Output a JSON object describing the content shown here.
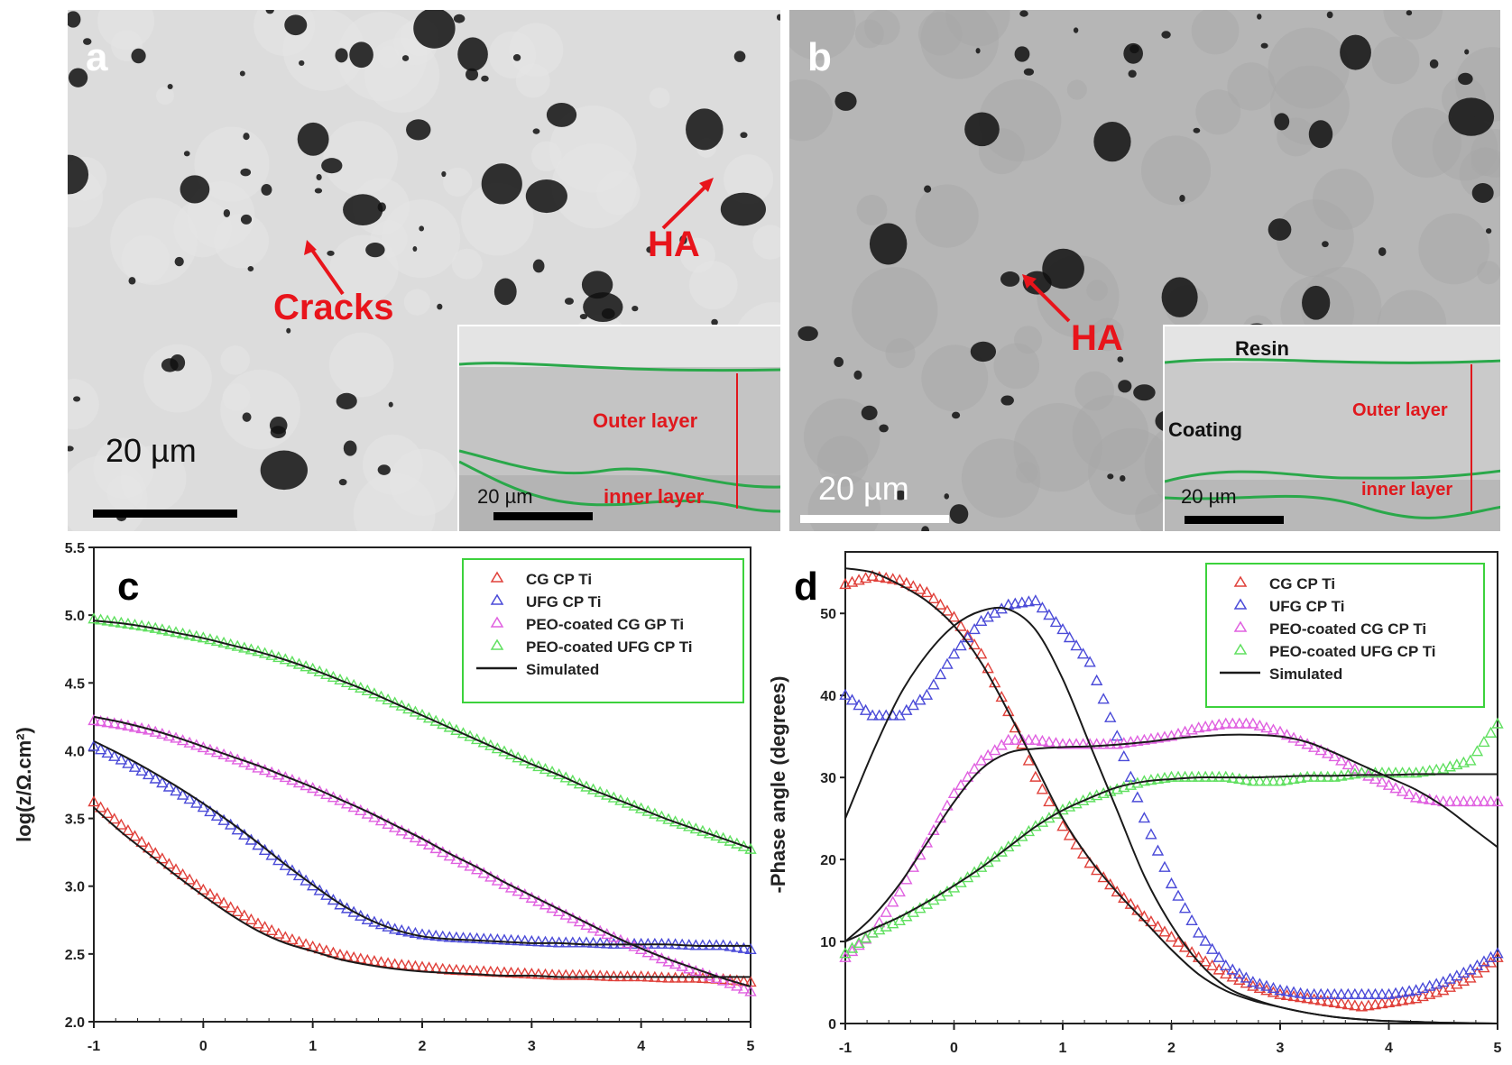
{
  "panels": {
    "a": {
      "label": "a",
      "annotations": {
        "cracks": "Cracks",
        "ha": "HA"
      },
      "scale_bar": "20 µm",
      "inset": {
        "outer_layer": "Outer layer",
        "inner_layer": "inner layer",
        "scale_bar": "20 µm"
      }
    },
    "b": {
      "label": "b",
      "annotations": {
        "ha": "HA"
      },
      "scale_bar": "20 µm",
      "inset": {
        "resin": "Resin",
        "coating": "Coating",
        "outer_layer": "Outer layer",
        "inner_layer": "inner layer",
        "scale_bar": "20 µm"
      }
    }
  },
  "colors": {
    "red": "#e0403a",
    "blue": "#4a4ad8",
    "magenta": "#e060e0",
    "green": "#60e060",
    "simulated": "#1a1a1a",
    "legend_border": "#3cd23c",
    "annotation": "#e8141b",
    "boundary_line": "#2aa84a"
  },
  "chart_data": [
    {
      "panel_label": "c",
      "type": "scatter",
      "ylabel": "log(z/Ω.cm²)",
      "xlabel": "",
      "xlim": [
        -1,
        5
      ],
      "ylim": [
        2.0,
        5.5
      ],
      "xticks": [
        "-1",
        "0",
        "1",
        "2",
        "3",
        "4",
        "5"
      ],
      "yticks": [
        "2.0",
        "2.5",
        "3.0",
        "3.5",
        "4.0",
        "4.5",
        "5.0",
        "5.5"
      ],
      "grid": false,
      "legend_position": "top-right",
      "x": [
        -1,
        -0.75,
        -0.5,
        -0.25,
        0,
        0.25,
        0.5,
        0.75,
        1,
        1.25,
        1.5,
        1.75,
        2,
        2.25,
        2.5,
        2.75,
        3,
        3.25,
        3.5,
        3.75,
        4,
        4.25,
        4.5,
        4.75,
        5
      ],
      "series": [
        {
          "name": "CG CP Ti",
          "color": "#e0403a",
          "marker": "triangle",
          "values": [
            3.62,
            3.45,
            3.28,
            3.12,
            2.97,
            2.84,
            2.72,
            2.62,
            2.55,
            2.49,
            2.45,
            2.42,
            2.4,
            2.38,
            2.37,
            2.36,
            2.35,
            2.34,
            2.34,
            2.33,
            2.33,
            2.32,
            2.32,
            2.31,
            2.29
          ]
        },
        {
          "name": "UFG CP Ti",
          "color": "#4a4ad8",
          "marker": "triangle",
          "values": [
            4.03,
            3.93,
            3.82,
            3.7,
            3.58,
            3.45,
            3.3,
            3.15,
            3.0,
            2.86,
            2.75,
            2.68,
            2.64,
            2.62,
            2.61,
            2.6,
            2.59,
            2.58,
            2.58,
            2.57,
            2.57,
            2.57,
            2.56,
            2.56,
            2.53
          ]
        },
        {
          "name": "PEO-coated CG GP Ti",
          "color": "#e060e0",
          "marker": "triangle",
          "values": [
            4.22,
            4.19,
            4.15,
            4.09,
            4.02,
            3.95,
            3.87,
            3.8,
            3.72,
            3.63,
            3.53,
            3.43,
            3.33,
            3.22,
            3.12,
            3.01,
            2.91,
            2.81,
            2.71,
            2.62,
            2.53,
            2.44,
            2.37,
            2.3,
            2.22
          ]
        },
        {
          "name": "PEO-coated UFG CP Ti",
          "color": "#60e060",
          "marker": "triangle",
          "values": [
            4.97,
            4.94,
            4.91,
            4.87,
            4.83,
            4.78,
            4.73,
            4.67,
            4.6,
            4.52,
            4.44,
            4.35,
            4.26,
            4.17,
            4.08,
            3.99,
            3.9,
            3.82,
            3.73,
            3.65,
            3.57,
            3.49,
            3.42,
            3.35,
            3.27
          ]
        }
      ],
      "simulated": {
        "name": "Simulated",
        "color": "#1a1a1a",
        "lines": [
          [
            3.58,
            3.4,
            3.24,
            3.08,
            2.93,
            2.79,
            2.67,
            2.58,
            2.52,
            2.46,
            2.42,
            2.39,
            2.37,
            2.36,
            2.35,
            2.34,
            2.34,
            2.33,
            2.33,
            2.33,
            2.33,
            2.33,
            2.33,
            2.33,
            2.33
          ],
          [
            4.07,
            3.97,
            3.86,
            3.74,
            3.61,
            3.47,
            3.32,
            3.16,
            3.01,
            2.87,
            2.76,
            2.68,
            2.63,
            2.61,
            2.6,
            2.59,
            2.58,
            2.58,
            2.57,
            2.57,
            2.57,
            2.57,
            2.56,
            2.56,
            2.56
          ],
          [
            4.25,
            4.21,
            4.16,
            4.1,
            4.03,
            3.96,
            3.89,
            3.81,
            3.73,
            3.64,
            3.55,
            3.45,
            3.35,
            3.24,
            3.14,
            3.03,
            2.93,
            2.83,
            2.73,
            2.63,
            2.54,
            2.46,
            2.39,
            2.32,
            2.26
          ],
          [
            4.96,
            4.94,
            4.91,
            4.87,
            4.83,
            4.78,
            4.73,
            4.67,
            4.6,
            4.52,
            4.44,
            4.35,
            4.26,
            4.17,
            4.08,
            3.99,
            3.9,
            3.82,
            3.73,
            3.65,
            3.57,
            3.49,
            3.42,
            3.35,
            3.28
          ]
        ]
      }
    },
    {
      "panel_label": "d",
      "type": "scatter",
      "ylabel": "-Phase angle (degrees)",
      "xlabel": "",
      "xlim": [
        -1,
        5
      ],
      "ylim": [
        0,
        57.5
      ],
      "xticks": [
        "-1",
        "0",
        "1",
        "2",
        "3",
        "4",
        "5"
      ],
      "yticks": [
        "0",
        "10",
        "20",
        "30",
        "40",
        "50"
      ],
      "grid": false,
      "legend_position": "top-right",
      "x": [
        -1,
        -0.75,
        -0.5,
        -0.25,
        0,
        0.25,
        0.5,
        0.75,
        1,
        1.25,
        1.5,
        1.75,
        2,
        2.25,
        2.5,
        2.75,
        3,
        3.25,
        3.5,
        3.75,
        4,
        4.25,
        4.5,
        4.75,
        5
      ],
      "series": [
        {
          "name": "CG CP Ti",
          "color": "#e0403a",
          "marker": "triangle",
          "values": [
            53.5,
            54.5,
            54,
            52.5,
            49.5,
            45,
            38,
            30,
            24,
            19.5,
            16,
            13,
            10.5,
            8,
            6,
            4.5,
            3.5,
            3,
            2.5,
            2,
            2.5,
            3,
            4,
            5.5,
            8
          ]
        },
        {
          "name": "UFG CP Ti",
          "color": "#4a4ad8",
          "marker": "triangle",
          "values": [
            40,
            37.5,
            37.5,
            40,
            45,
            49,
            51,
            51.5,
            48,
            44,
            35,
            25,
            17,
            11,
            7,
            5,
            4,
            3.5,
            3.5,
            3.5,
            3.5,
            4,
            5,
            6.5,
            8.5
          ]
        },
        {
          "name": "PEO-coated CG CP Ti",
          "color": "#e060e0",
          "marker": "triangle",
          "values": [
            8,
            11,
            16,
            22,
            28,
            32,
            34.5,
            34.5,
            34,
            34,
            34,
            34.5,
            35,
            36,
            36.5,
            36.5,
            35.5,
            34,
            32.5,
            30.5,
            29,
            27.5,
            27,
            27,
            27
          ]
        },
        {
          "name": "PEO-coated UFG CP Ti",
          "color": "#60e060",
          "marker": "triangle",
          "values": [
            8.5,
            11,
            12.5,
            14.5,
            16.5,
            19,
            21.5,
            24,
            26,
            27.5,
            28.5,
            29.5,
            30,
            30,
            30,
            29.5,
            29.5,
            30,
            30,
            30.5,
            30.5,
            30.5,
            31,
            32,
            36.5
          ]
        }
      ],
      "simulated": {
        "name": "Simulated",
        "color": "#1a1a1a",
        "lines": [
          [
            55.5,
            55,
            53.5,
            51.5,
            48.5,
            44,
            38,
            31.5,
            25,
            20,
            16,
            12.5,
            9,
            6,
            4,
            2.8,
            2,
            1.3,
            0.8,
            0.5,
            0.3,
            0.2,
            0.1,
            0.05,
            0
          ],
          [
            25,
            33,
            40,
            45,
            48.5,
            50.3,
            50.5,
            48,
            42,
            34,
            26,
            18,
            12,
            7.5,
            4.5,
            3,
            2,
            1.3,
            0.8,
            0.5,
            0.3,
            0.2,
            0.1,
            0.05,
            0
          ],
          [
            10,
            13,
            17,
            22,
            27,
            31,
            33,
            33.5,
            33.7,
            33.8,
            34,
            34.3,
            34.7,
            35,
            35.2,
            35.2,
            35,
            34.3,
            33,
            31.5,
            30,
            28.5,
            26.5,
            24,
            21.5
          ],
          [
            10,
            11.5,
            13,
            14.8,
            16.8,
            19,
            21.5,
            24,
            26,
            27.5,
            28.8,
            29.5,
            29.8,
            30,
            30,
            30,
            30.1,
            30.2,
            30.2,
            30.3,
            30.3,
            30.4,
            30.4,
            30.4,
            30.4
          ]
        ]
      }
    }
  ]
}
